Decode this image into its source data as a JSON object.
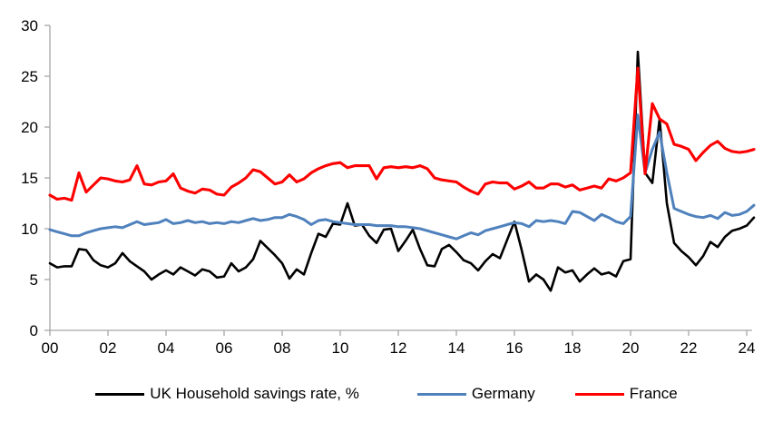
{
  "chart_data": {
    "type": "line",
    "title": "",
    "xlabel": "",
    "ylabel": "",
    "grid": false,
    "legend_position": "bottom",
    "axis_color": "#a6a6a6",
    "background_color": "#ffffff",
    "ylim": [
      0,
      30
    ],
    "xlim": [
      2000,
      2024.4
    ],
    "y_ticks": [
      0,
      5,
      10,
      15,
      20,
      25,
      30
    ],
    "x_tick_years": [
      2000,
      2002,
      2004,
      2006,
      2008,
      2010,
      2012,
      2014,
      2016,
      2018,
      2020,
      2022,
      2024
    ],
    "x_tick_labels": [
      "00",
      "02",
      "04",
      "06",
      "08",
      "10",
      "12",
      "14",
      "16",
      "18",
      "20",
      "22",
      "24"
    ],
    "x_start": 2000,
    "x_step_years": 0.25,
    "frequency": "quarterly",
    "series": [
      {
        "name": "UK Household savings rate, %",
        "color": "#000000",
        "stroke_width": 2.6,
        "values": [
          6.6,
          6.2,
          6.3,
          6.3,
          8.0,
          7.9,
          6.9,
          6.4,
          6.2,
          6.6,
          7.6,
          6.8,
          6.3,
          5.8,
          5.0,
          5.5,
          5.9,
          5.5,
          6.2,
          5.8,
          5.4,
          6.0,
          5.8,
          5.2,
          5.3,
          6.6,
          5.8,
          6.2,
          7.0,
          8.8,
          8.1,
          7.4,
          6.6,
          5.1,
          6.0,
          5.5,
          7.6,
          9.5,
          9.2,
          10.5,
          10.4,
          12.5,
          10.3,
          10.4,
          9.3,
          8.6,
          9.9,
          10.0,
          7.8,
          8.8,
          9.9,
          8.0,
          6.4,
          6.3,
          8.0,
          8.4,
          7.7,
          6.9,
          6.6,
          5.9,
          6.8,
          7.5,
          7.1,
          8.9,
          10.7,
          7.9,
          4.8,
          5.5,
          5.0,
          3.9,
          6.2,
          5.7,
          5.9,
          4.8,
          5.5,
          6.1,
          5.5,
          5.7,
          5.3,
          6.8,
          7.0,
          27.4,
          15.5,
          14.5,
          20.8,
          12.5,
          8.6,
          7.8,
          7.2,
          6.4,
          7.3,
          8.7,
          8.2,
          9.2,
          9.8,
          10.0,
          10.3,
          11.1
        ]
      },
      {
        "name": "Germany",
        "color": "#4f81bd",
        "stroke_width": 3,
        "values": [
          9.9,
          9.7,
          9.5,
          9.3,
          9.3,
          9.6,
          9.8,
          10.0,
          10.1,
          10.2,
          10.1,
          10.4,
          10.7,
          10.4,
          10.5,
          10.6,
          10.9,
          10.5,
          10.6,
          10.8,
          10.6,
          10.7,
          10.5,
          10.6,
          10.5,
          10.7,
          10.6,
          10.8,
          11.0,
          10.8,
          10.9,
          11.1,
          11.1,
          11.4,
          11.2,
          10.9,
          10.4,
          10.8,
          10.9,
          10.7,
          10.6,
          10.5,
          10.4,
          10.4,
          10.4,
          10.3,
          10.3,
          10.3,
          10.2,
          10.2,
          10.1,
          10.0,
          9.8,
          9.6,
          9.4,
          9.2,
          9.0,
          9.3,
          9.6,
          9.4,
          9.8,
          10.0,
          10.2,
          10.4,
          10.6,
          10.5,
          10.2,
          10.8,
          10.7,
          10.8,
          10.7,
          10.5,
          11.7,
          11.6,
          11.2,
          10.8,
          11.4,
          11.1,
          10.7,
          10.5,
          11.2,
          21.2,
          15.5,
          17.8,
          19.5,
          15.5,
          12.0,
          11.7,
          11.4,
          11.2,
          11.1,
          11.3,
          11.0,
          11.6,
          11.3,
          11.4,
          11.7,
          12.3
        ]
      },
      {
        "name": "France",
        "color": "#ff0000",
        "stroke_width": 3.1,
        "values": [
          13.3,
          12.9,
          13.0,
          12.8,
          15.5,
          13.6,
          14.3,
          15.0,
          14.9,
          14.7,
          14.6,
          14.8,
          16.2,
          14.4,
          14.3,
          14.6,
          14.7,
          15.4,
          14.0,
          13.7,
          13.5,
          13.9,
          13.8,
          13.4,
          13.3,
          14.1,
          14.5,
          15.0,
          15.8,
          15.6,
          15.0,
          14.4,
          14.6,
          15.3,
          14.6,
          14.9,
          15.5,
          15.9,
          16.2,
          16.4,
          16.5,
          16.0,
          16.2,
          16.2,
          16.2,
          14.9,
          16.0,
          16.1,
          16.0,
          16.1,
          16.0,
          16.2,
          15.9,
          15.0,
          14.8,
          14.7,
          14.6,
          14.1,
          13.7,
          13.4,
          14.4,
          14.6,
          14.5,
          14.5,
          13.9,
          14.2,
          14.6,
          14.0,
          14.0,
          14.4,
          14.4,
          14.1,
          14.3,
          13.8,
          14.0,
          14.2,
          14.0,
          14.9,
          14.7,
          15.0,
          15.5,
          25.8,
          15.4,
          22.3,
          20.8,
          20.3,
          18.3,
          18.1,
          17.8,
          16.7,
          17.5,
          18.2,
          18.6,
          17.9,
          17.6,
          17.5,
          17.6,
          17.8
        ]
      }
    ],
    "legend": [
      {
        "label": "UK Household savings rate, %"
      },
      {
        "label": "Germany"
      },
      {
        "label": "France"
      }
    ]
  }
}
